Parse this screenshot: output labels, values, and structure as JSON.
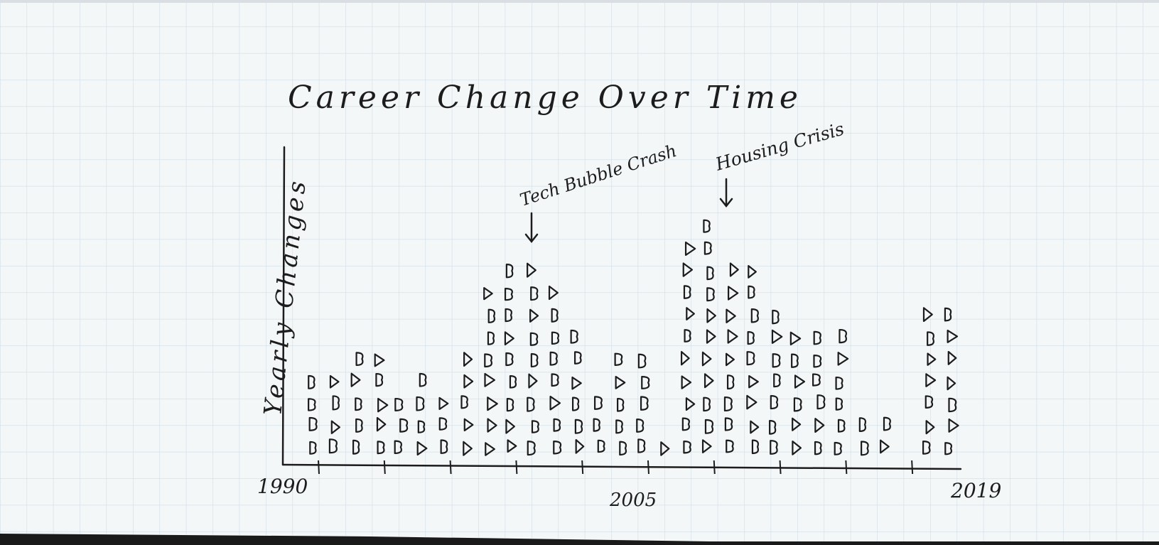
{
  "chart_data": {
    "type": "bar",
    "title": "Career Change Over Time",
    "xlabel": "",
    "ylabel": "Yearly Changes",
    "x_tick_labels": [
      "1990",
      "2005",
      "2019"
    ],
    "x_range": [
      1990,
      2019
    ],
    "mark": "hand-drawn unit marks (one glyph per career change), stacked per year column",
    "categories": [
      "1990",
      "1991",
      "1992",
      "1993",
      "1994",
      "1995",
      "1996",
      "1997",
      "1998",
      "1999",
      "2000",
      "2001",
      "2002",
      "2003",
      "2004",
      "2005",
      "2006",
      "2007",
      "2008",
      "2009",
      "2010",
      "2011",
      "2012",
      "2013",
      "2014",
      "2015",
      "2016",
      "2017",
      "2018",
      "2019"
    ],
    "values": [
      4,
      4,
      5,
      5,
      3,
      4,
      3,
      5,
      8,
      9,
      9,
      8,
      6,
      3,
      5,
      5,
      1,
      10,
      11,
      9,
      9,
      7,
      6,
      6,
      6,
      2,
      2,
      0,
      7,
      7
    ],
    "annotations": [
      {
        "text": "Tech Bubble Crash",
        "x": 2000
      },
      {
        "text": "Housing Crisis",
        "x": 2008
      }
    ],
    "paper_color": "#f4f7f8",
    "grid_color": "#cfdde6",
    "ink_color": "#1c1c1c"
  }
}
